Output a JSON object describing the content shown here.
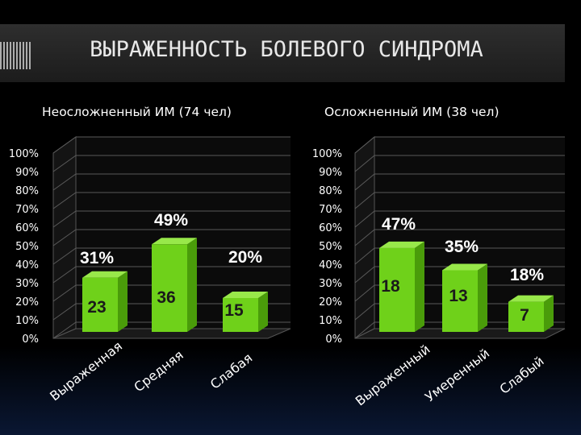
{
  "title": "ВЫРАЖЕННОСТЬ  БОЛЕВОГО СИНДРОМА",
  "colors": {
    "bar_front": "#6fd11a",
    "bar_side": "#4a9c0a",
    "bar_top": "#98e84a"
  },
  "chart_data": [
    {
      "type": "bar",
      "title": "Неосложненный ИМ (74 чел)",
      "categories": [
        "Выраженная",
        "Средняя",
        "Слабая"
      ],
      "values": [
        31,
        49,
        20
      ],
      "counts": [
        "23",
        "36",
        "15"
      ],
      "value_labels": [
        "31%",
        "49%",
        "20%"
      ],
      "yticks": [
        "0%",
        "10%",
        "20%",
        "30%",
        "40%",
        "50%",
        "60%",
        "70%",
        "80%",
        "90%",
        "100%"
      ],
      "ylim": [
        0,
        100
      ],
      "grid": true
    },
    {
      "type": "bar",
      "title": "Осложненный ИМ (38 чел)",
      "categories": [
        "Выраженный",
        "Умеренный",
        "Слабый"
      ],
      "values": [
        47,
        35,
        18
      ],
      "counts": [
        "18",
        "13",
        "7"
      ],
      "value_labels": [
        "47%",
        "35%",
        "18%"
      ],
      "yticks": [
        "0%",
        "10%",
        "20%",
        "30%",
        "40%",
        "50%",
        "60%",
        "70%",
        "80%",
        "90%",
        "100%"
      ],
      "ylim": [
        0,
        100
      ],
      "grid": true
    }
  ]
}
